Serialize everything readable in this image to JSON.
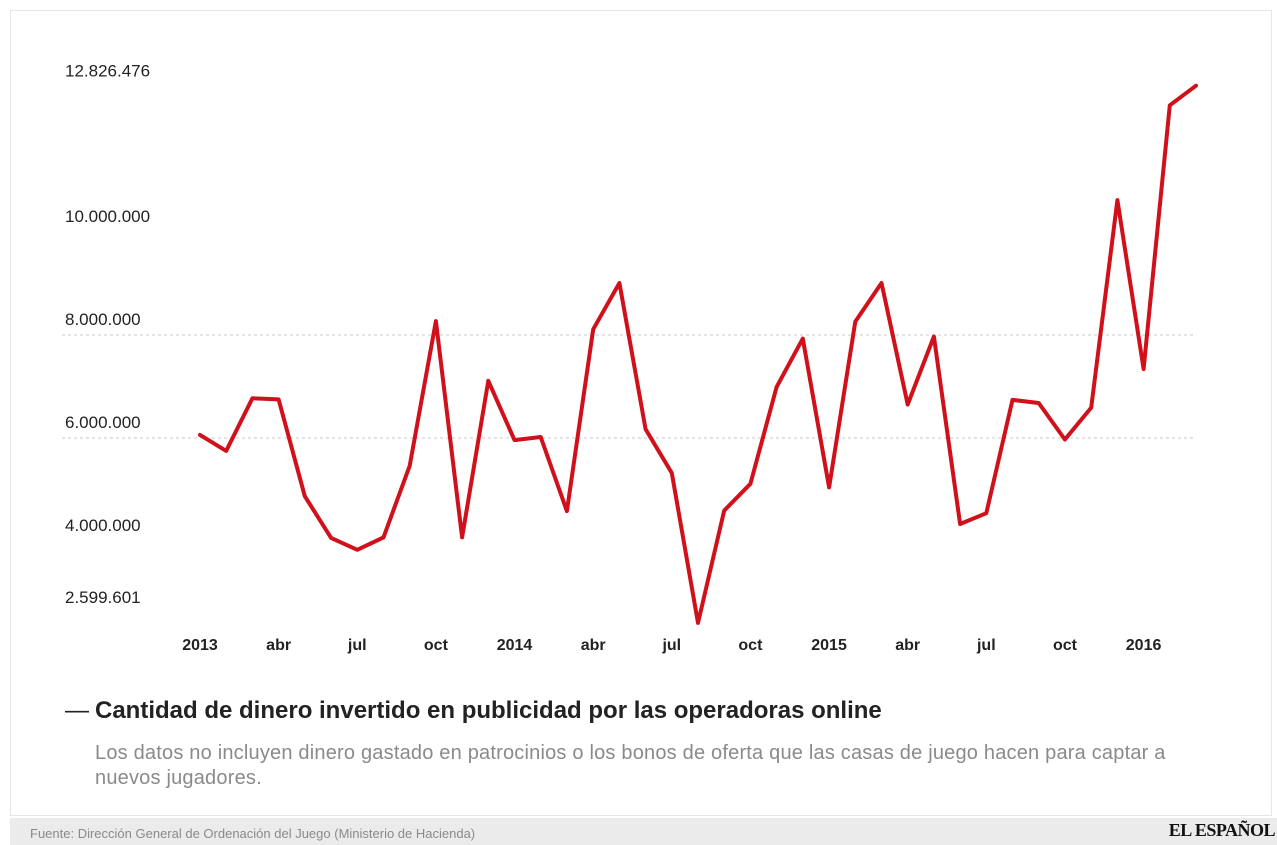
{
  "chart_data": {
    "type": "line",
    "title": "",
    "xlabel": "",
    "ylabel": "",
    "x": [
      "2013-01",
      "2013-02",
      "2013-03",
      "2013-04",
      "2013-05",
      "2013-06",
      "2013-07",
      "2013-08",
      "2013-09",
      "2013-10",
      "2013-11",
      "2013-12",
      "2014-01",
      "2014-02",
      "2014-03",
      "2014-04",
      "2014-05",
      "2014-06",
      "2014-07",
      "2014-08",
      "2014-09",
      "2014-10",
      "2014-11",
      "2014-12",
      "2015-01",
      "2015-02",
      "2015-03",
      "2015-04",
      "2015-05",
      "2015-06",
      "2015-07",
      "2015-08",
      "2015-09",
      "2015-10",
      "2015-11",
      "2015-12",
      "2016-01",
      "2016-02",
      "2016-03"
    ],
    "x_tick_labels": [
      "2013",
      "abr",
      "jul",
      "oct",
      "2014",
      "abr",
      "jul",
      "oct",
      "2015",
      "abr",
      "jul",
      "oct",
      "2016"
    ],
    "y_tick_labels": [
      "12.826.476",
      "10.000.000",
      "8.000.000",
      "6.000.000",
      "4.000.000",
      "2.599.601"
    ],
    "y_ticks": [
      12826476,
      10000000,
      8000000,
      6000000,
      4000000,
      2599601
    ],
    "ylim": [
      2599601,
      12826476
    ],
    "grid": {
      "y_lines": [
        6000000,
        8000000
      ]
    },
    "series": [
      {
        "name": "Cantidad de dinero invertido en publicidad por las operadoras online",
        "color": "#d0101a",
        "values": [
          6060000,
          5750000,
          6770000,
          6750000,
          4870000,
          4060000,
          3830000,
          4070000,
          5460000,
          8270000,
          4070000,
          7110000,
          5960000,
          6020000,
          4580000,
          8110000,
          9010000,
          6170000,
          5320000,
          2410000,
          4590000,
          5110000,
          6990000,
          7930000,
          5040000,
          8260000,
          9010000,
          6650000,
          7970000,
          4330000,
          4540000,
          6740000,
          6680000,
          5970000,
          6590000,
          10620000,
          7340000,
          12460000,
          12840000
        ]
      }
    ]
  },
  "legend": {
    "dash": "—",
    "label": "Cantidad de dinero invertido en publicidad por las operadoras online"
  },
  "note": "Los datos no incluyen dinero gastado en patrocinios o los bonos de oferta que las casas de juego hacen para captar a nuevos jugadores.",
  "footer": {
    "source": "Fuente: Dirección General de Ordenación del Juego (Ministerio de Hacienda)",
    "brand": "EL ESPAÑOL"
  }
}
